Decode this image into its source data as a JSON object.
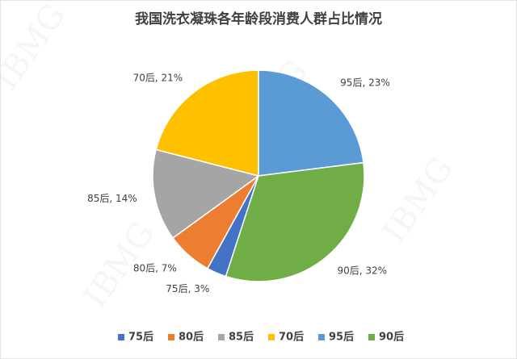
{
  "chart_data": {
    "type": "pie",
    "title": "我国洗衣凝珠各年龄段消费人群占比情况",
    "categories": [
      "75后",
      "80后",
      "85后",
      "70后",
      "95后",
      "90后"
    ],
    "values": [
      3,
      7,
      14,
      21,
      23,
      32
    ],
    "value_labels": [
      "75后, 3%",
      "80后, 7%",
      "85后, 14%",
      "70后, 21%",
      "95后, 23%",
      "90后, 32%"
    ],
    "colors": [
      "#4472c4",
      "#ed7d31",
      "#a5a5a5",
      "#ffc000",
      "#5b9bd5",
      "#70ad47"
    ],
    "start_angle": 198,
    "legend": "bottom",
    "watermark": "IBMG"
  }
}
